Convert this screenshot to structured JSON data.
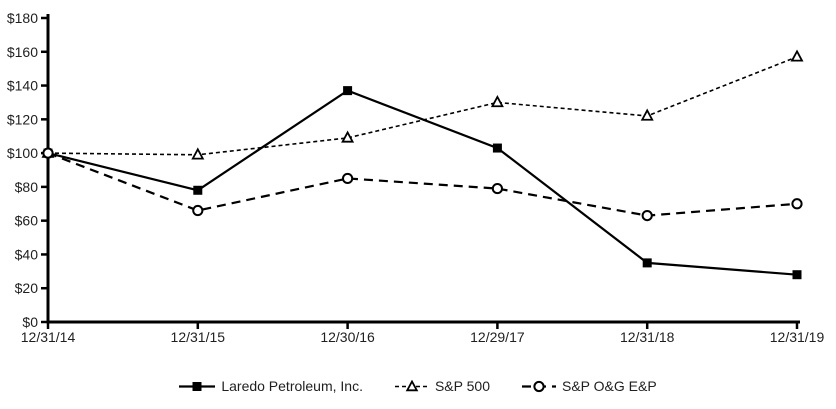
{
  "chart_data": {
    "type": "line",
    "categories": [
      "12/31/14",
      "12/31/15",
      "12/30/16",
      "12/29/17",
      "12/31/18",
      "12/31/19"
    ],
    "series": [
      {
        "name": "Laredo Petroleum, Inc.",
        "marker": "square",
        "line": "solid",
        "values": [
          100,
          78,
          137,
          103,
          35,
          28
        ]
      },
      {
        "name": "S&P 500",
        "marker": "triangle",
        "line": "short-dash",
        "values": [
          100,
          99,
          109,
          130,
          122,
          157
        ]
      },
      {
        "name": "S&P O&G E&P",
        "marker": "circle",
        "line": "dash",
        "values": [
          100,
          66,
          85,
          79,
          63,
          70
        ]
      }
    ],
    "title": "",
    "xlabel": "",
    "ylabel": "",
    "ylim": [
      0,
      180
    ],
    "y_tick_step": 20,
    "y_ticks": [
      "$0",
      "$20",
      "$40",
      "$60",
      "$80",
      "$100",
      "$120",
      "$140",
      "$160",
      "$180"
    ],
    "grid": false,
    "legend_position": "bottom",
    "line_color": "#000000",
    "marker_fill": "#ffffff",
    "text_color": "#1f1f1f",
    "background": "#ffffff"
  }
}
